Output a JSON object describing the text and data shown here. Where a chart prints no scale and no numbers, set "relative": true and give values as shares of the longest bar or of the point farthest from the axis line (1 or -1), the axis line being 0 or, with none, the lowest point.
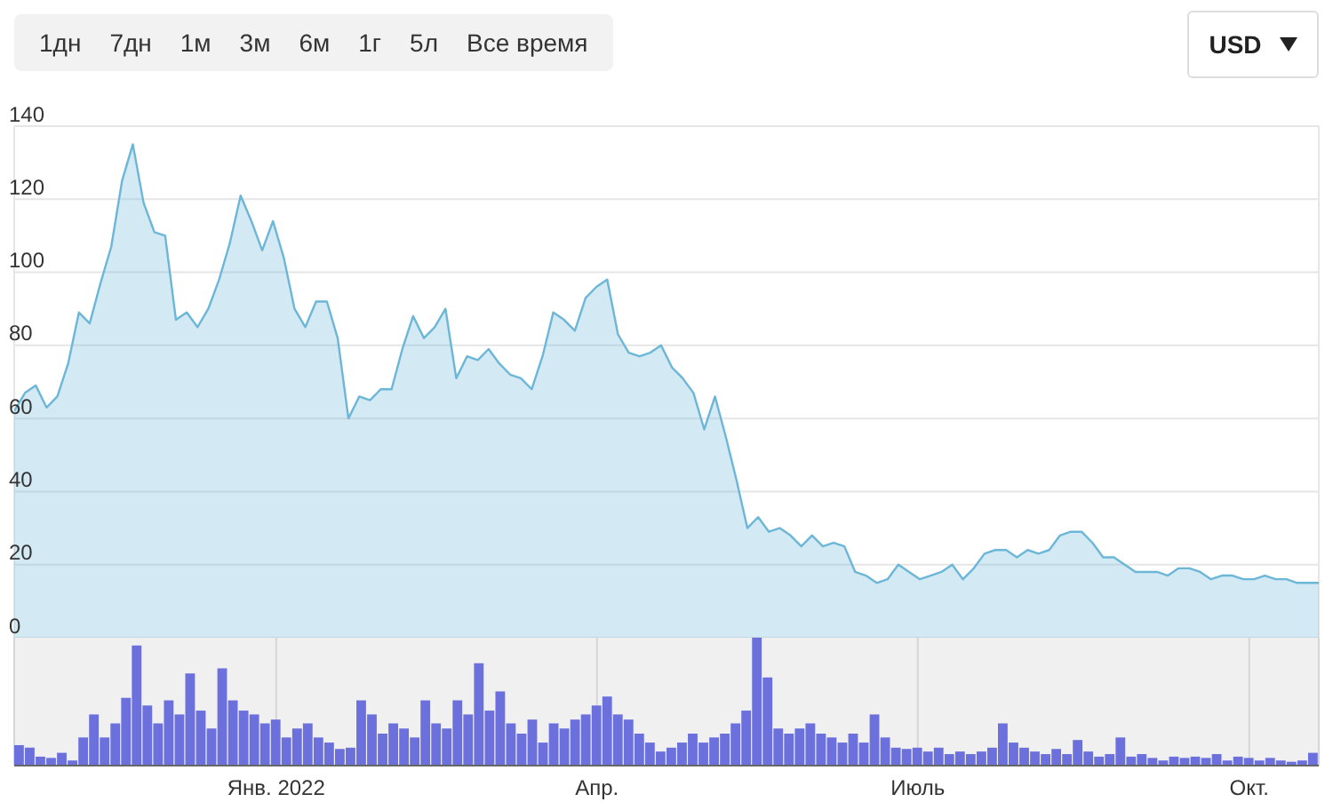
{
  "chart_data": [
    {
      "type": "area",
      "color": "#6cb6d8",
      "annotations": [
        "1дн",
        "7дн",
        "1м",
        "3м",
        "6м",
        "1г",
        "5л",
        "Все время",
        "USD"
      ],
      "ylim": [
        0,
        140
      ],
      "yticks": [
        0,
        20,
        40,
        60,
        80,
        100,
        120,
        140
      ],
      "grid": true,
      "tick_labels": "y",
      "categories": [
        null,
        null,
        null,
        null,
        null,
        null,
        null,
        null,
        null,
        null,
        null,
        null,
        null,
        null,
        null,
        null,
        null,
        null,
        null,
        null,
        null,
        null,
        null,
        null,
        null,
        null,
        null,
        null,
        null,
        null,
        null,
        null,
        null,
        null,
        null,
        null,
        null,
        null,
        null,
        null,
        null,
        null,
        null,
        null,
        null,
        null,
        null,
        null,
        null,
        null,
        null,
        null,
        null,
        null,
        null,
        null,
        null,
        null,
        null,
        null,
        null,
        null,
        null,
        null,
        null,
        null,
        null,
        null,
        null,
        null,
        null,
        null,
        null,
        null,
        null,
        null,
        null,
        null,
        null,
        null,
        null,
        null,
        null,
        null,
        null,
        null,
        null,
        null,
        null,
        null,
        null,
        null,
        null,
        null,
        null,
        null,
        null,
        null,
        null,
        null,
        null,
        null,
        null,
        null,
        null,
        null,
        null,
        null,
        null,
        null,
        null,
        null,
        null,
        null,
        null,
        null,
        null,
        null,
        null,
        null,
        null,
        null
      ],
      "values": [
        62,
        67,
        69,
        63,
        66,
        75,
        89,
        86,
        97,
        107,
        125,
        135,
        119,
        111,
        110,
        87,
        89,
        85,
        90,
        98,
        108,
        121,
        114,
        106,
        114,
        104,
        90,
        85,
        92,
        92,
        82,
        60,
        66,
        65,
        68,
        68,
        79,
        88,
        82,
        85,
        90,
        71,
        77,
        76,
        79,
        75,
        72,
        71,
        68,
        77,
        89,
        87,
        84,
        93,
        96,
        98,
        83,
        78,
        77,
        78,
        80,
        74,
        71,
        67,
        57,
        66,
        55,
        43,
        30,
        33,
        29,
        30,
        28,
        25,
        28,
        25,
        26,
        25,
        18,
        17,
        15,
        16,
        20,
        18,
        16,
        17,
        18,
        20,
        16,
        19,
        23,
        24,
        24,
        22,
        24,
        23,
        24,
        28,
        29,
        29,
        26,
        22,
        22,
        20,
        18,
        18,
        18,
        17,
        19,
        19,
        18,
        16,
        17,
        17,
        16,
        16,
        17,
        16,
        16,
        15,
        15,
        15
      ]
    },
    {
      "type": "bar",
      "color": "#6b70dc",
      "relative": true,
      "grid": "x",
      "tick_labels": "x",
      "categories": [
        null,
        null,
        null,
        null,
        null,
        null,
        null,
        null,
        null,
        null,
        null,
        null,
        null,
        null,
        null,
        null,
        null,
        null,
        null,
        null,
        null,
        null,
        null,
        null,
        "Янв. 2022",
        null,
        null,
        null,
        null,
        null,
        null,
        null,
        null,
        null,
        null,
        null,
        null,
        null,
        null,
        null,
        null,
        null,
        null,
        null,
        null,
        null,
        null,
        null,
        null,
        null,
        null,
        null,
        null,
        null,
        "Апр.",
        null,
        null,
        null,
        null,
        null,
        null,
        null,
        null,
        null,
        null,
        null,
        null,
        null,
        null,
        null,
        null,
        null,
        null,
        null,
        null,
        null,
        null,
        null,
        null,
        null,
        null,
        null,
        null,
        null,
        "Июль",
        null,
        null,
        null,
        null,
        null,
        null,
        null,
        null,
        null,
        null,
        null,
        null,
        null,
        null,
        null,
        null,
        null,
        null,
        null,
        null,
        null,
        null,
        null,
        null,
        null,
        null,
        null,
        null,
        null,
        null,
        "Окт.",
        null,
        null,
        null,
        null,
        null,
        null
      ],
      "values": [
        0.16,
        0.14,
        0.07,
        0.06,
        0.1,
        0.04,
        0.22,
        0.4,
        0.22,
        0.33,
        0.53,
        0.94,
        0.47,
        0.33,
        0.51,
        0.4,
        0.72,
        0.43,
        0.29,
        0.76,
        0.51,
        0.43,
        0.4,
        0.33,
        0.36,
        0.22,
        0.29,
        0.33,
        0.22,
        0.18,
        0.13,
        0.14,
        0.51,
        0.4,
        0.25,
        0.33,
        0.29,
        0.22,
        0.51,
        0.33,
        0.29,
        0.51,
        0.4,
        0.8,
        0.43,
        0.58,
        0.33,
        0.25,
        0.36,
        0.18,
        0.33,
        0.29,
        0.36,
        0.4,
        0.47,
        0.54,
        0.4,
        0.36,
        0.25,
        0.18,
        0.11,
        0.14,
        0.18,
        0.25,
        0.18,
        0.22,
        0.25,
        0.33,
        0.43,
        1,
        0.69,
        0.29,
        0.25,
        0.29,
        0.33,
        0.25,
        0.22,
        0.18,
        0.25,
        0.18,
        0.4,
        0.22,
        0.14,
        0.13,
        0.14,
        0.11,
        0.14,
        0.09,
        0.11,
        0.09,
        0.11,
        0.14,
        0.33,
        0.18,
        0.14,
        0.11,
        0.09,
        0.13,
        0.09,
        0.2,
        0.11,
        0.07,
        0.09,
        0.22,
        0.07,
        0.09,
        0.06,
        0.04,
        0.07,
        0.06,
        0.07,
        0.06,
        0.09,
        0.04,
        0.07,
        0.06,
        0.04,
        0.06,
        0.04,
        0.03,
        0.04,
        0.1
      ]
    }
  ]
}
